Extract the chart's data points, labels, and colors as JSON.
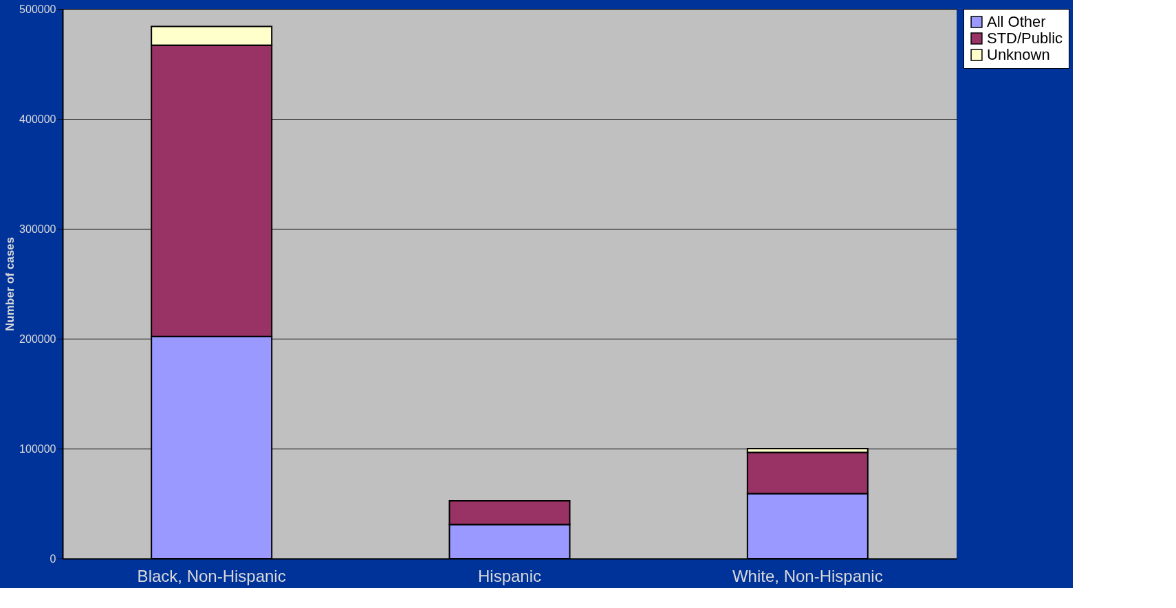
{
  "chart_data": {
    "type": "bar",
    "ylabel": "Number of cases",
    "categories": [
      "Black, Non-Hispanic",
      "Hispanic",
      "White, Non-Hispanic"
    ],
    "stacked": true,
    "series": [
      {
        "name": "All Other",
        "color": "#9999ff",
        "values": [
          202000,
          31000,
          59000
        ]
      },
      {
        "name": "STD/Public",
        "color": "#993366",
        "values": [
          265000,
          21500,
          37500
        ]
      },
      {
        "name": "Unknown",
        "color": "#ffffcc",
        "values": [
          17000,
          null,
          3500
        ]
      }
    ],
    "ylim": [
      0,
      500000
    ],
    "yticks": [
      0,
      100000,
      200000,
      300000,
      400000,
      500000
    ],
    "grid": "y",
    "legend": "right"
  }
}
